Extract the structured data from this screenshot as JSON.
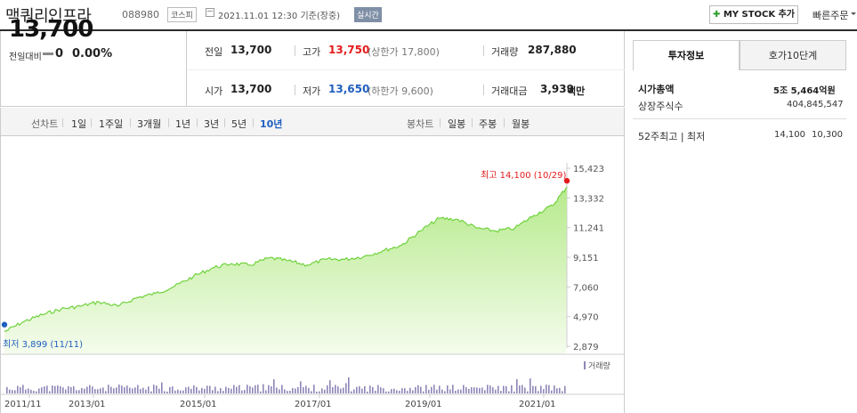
{
  "header": {
    "stock_name": "맥쿼리인프라",
    "stock_code": "088980",
    "market_badge": "코스피",
    "timestamp": "2021.11.01 12:30",
    "basis": "기준(장중)",
    "realtime_badge": "실시간",
    "mystock_label": "MY STOCK 추가",
    "quick_order_label": "빠른주문"
  },
  "price": {
    "current": "13,700",
    "change_label": "전일대비",
    "change_value": "0",
    "change_pct": "0.00%"
  },
  "stats": {
    "prev_label": "전일",
    "prev_value": "13,700",
    "high_label": "고가",
    "high_value": "13,750",
    "upper_limit": "(상한가 17,800)",
    "volume_label": "거래량",
    "volume_value": "287,880",
    "open_label": "시가",
    "open_value": "13,700",
    "low_label": "저가",
    "low_value": "13,650",
    "lower_limit": "(하한가 9,600)",
    "amount_label": "거래대금",
    "amount_value": "3,939",
    "amount_unit": "백만"
  },
  "toolbar": {
    "line_label": "선차트",
    "line_periods": [
      "1일",
      "1주일",
      "3개월",
      "1년",
      "3년",
      "5년",
      "10년"
    ],
    "active_period": "10년",
    "candle_label": "봉차트",
    "candle_periods": [
      "일봉",
      "주봉",
      "월봉"
    ]
  },
  "colors": {
    "accent_red": "#e41b1b",
    "accent_blue": "#1f5fbf",
    "line_green": "#6fd23c",
    "active_period": "#1f5fbf"
  },
  "chart_data": {
    "type": "area",
    "y_ticks": [
      "15,423",
      "13,332",
      "11,241",
      "9,151",
      "7,060",
      "4,970",
      "2,879"
    ],
    "ylim": [
      2879,
      15423
    ],
    "x_ticks": [
      "2011/11",
      "2013/01",
      "2015/01",
      "2017/01",
      "2019/01",
      "2021/01"
    ],
    "high_annotation": "최고 14,100 (10/29)",
    "low_annotation": "최저 3,899 (11/11)",
    "volume_label": "거래량",
    "x": [
      "2011/11",
      "2012/03",
      "2012/07",
      "2012/11",
      "2013/03",
      "2013/07",
      "2013/11",
      "2014/03",
      "2014/07",
      "2014/11",
      "2015/03",
      "2015/07",
      "2015/11",
      "2016/03",
      "2016/07",
      "2016/11",
      "2017/03",
      "2017/07",
      "2017/11",
      "2018/03",
      "2018/07",
      "2018/11",
      "2019/03",
      "2019/07",
      "2019/11",
      "2020/03",
      "2020/07",
      "2020/11",
      "2021/03",
      "2021/07",
      "2021/10"
    ],
    "values": [
      3899,
      4600,
      5100,
      5500,
      5700,
      6000,
      5700,
      6300,
      6600,
      7100,
      7800,
      8400,
      8700,
      8600,
      9100,
      8900,
      8600,
      9000,
      9000,
      9200,
      9600,
      10000,
      11000,
      11900,
      11800,
      11200,
      11000,
      11200,
      12100,
      12800,
      14100
    ]
  },
  "right_panel": {
    "tab_info": "투자정보",
    "tab_hoga": "호가10단계",
    "market_cap_label": "시가총액",
    "market_cap_value": "5조 5,464억원",
    "shares_label": "상장주식수",
    "shares_value": "404,845,547",
    "week52_label": "52주최고 | 최저",
    "week52_high": "14,100",
    "week52_low": "10,300"
  }
}
